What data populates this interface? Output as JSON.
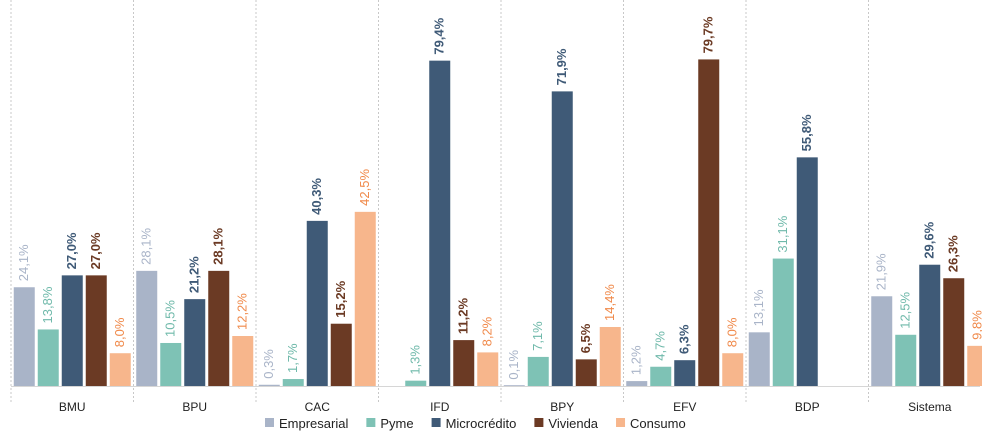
{
  "chart_data": {
    "type": "bar",
    "categories": [
      "BMU",
      "BPU",
      "CAC",
      "IFD",
      "BPY",
      "EFV",
      "BDP",
      "Sistema"
    ],
    "series": [
      {
        "name": "Empresarial",
        "color": "#A9B4C8",
        "label_color": "#A9B4C8",
        "values": [
          24.1,
          28.1,
          0.3,
          null,
          0.1,
          1.2,
          13.1,
          21.9
        ],
        "labels": [
          "24,1%",
          "28,1%",
          "0,3%",
          "",
          "0,1%",
          "1,2%",
          "13,1%",
          "21,9%"
        ]
      },
      {
        "name": "Pyme",
        "color": "#7EC2B5",
        "label_color": "#6FB9AA",
        "values": [
          13.8,
          10.5,
          1.7,
          1.3,
          7.1,
          4.7,
          31.1,
          12.5
        ],
        "labels": [
          "13,8%",
          "10,5%",
          "1,7%",
          "1,3%",
          "7,1%",
          "4,7%",
          "31,1%",
          "12,5%"
        ]
      },
      {
        "name": "Microcrédito",
        "color": "#3F5A77",
        "label_color": "#3F5A77",
        "values": [
          27.0,
          21.2,
          40.3,
          79.4,
          71.9,
          6.3,
          55.8,
          29.6
        ],
        "labels": [
          "27,0%",
          "21,2%",
          "40,3%",
          "79,4%",
          "71,9%",
          "6,3%",
          "55,8%",
          "29,6%"
        ]
      },
      {
        "name": "Vivienda",
        "color": "#6B3A24",
        "label_color": "#6B3A24",
        "values": [
          27.0,
          28.1,
          15.2,
          11.2,
          6.5,
          79.7,
          null,
          26.3
        ],
        "labels": [
          "27,0%",
          "28,1%",
          "15,2%",
          "11,2%",
          "6,5%",
          "79,7%",
          "",
          "26,3%"
        ]
      },
      {
        "name": "Consumo",
        "color": "#F7B68C",
        "label_color": "#F08A4B",
        "values": [
          8.0,
          12.2,
          42.5,
          8.2,
          14.4,
          8.0,
          null,
          9.8
        ],
        "labels": [
          "8,0%",
          "12,2%",
          "42,5%",
          "8,2%",
          "14,4%",
          "8,0%",
          "",
          "9,8%"
        ]
      }
    ],
    "ylim": [
      0,
      82
    ],
    "grid": false,
    "category_separators": true,
    "legend_position": "bottom-center",
    "title": "",
    "xlabel": "",
    "ylabel": ""
  }
}
